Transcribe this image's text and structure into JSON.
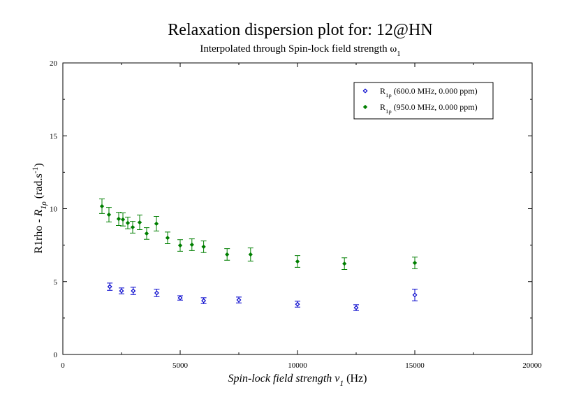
{
  "chart_data": {
    "type": "scatter",
    "title": "Relaxation dispersion plot for: 12@HN",
    "subtitle": [
      {
        "text": "Interpolated through Spin-lock field strength ω"
      },
      {
        "text": "1",
        "sub": true
      }
    ],
    "xlabel": [
      {
        "text": "Spin-lock field strength ν",
        "italic": true
      },
      {
        "text": "1",
        "sub": true,
        "italic": true
      },
      {
        "text": " (Hz)"
      }
    ],
    "ylabel": [
      {
        "text": "R1rho - "
      },
      {
        "text": "R",
        "italic": true
      },
      {
        "text": "1ρ",
        "sub": true,
        "italic": true
      },
      {
        "text": " (rad.s"
      },
      {
        "text": "-1",
        "sup": true
      },
      {
        "text": ")"
      }
    ],
    "xlim": [
      0,
      20000
    ],
    "ylim": [
      0,
      20
    ],
    "xticks": [
      0,
      5000,
      10000,
      15000,
      20000
    ],
    "yticks": [
      0,
      5,
      10,
      15,
      20
    ],
    "xminorticks": [
      2500,
      7500,
      12500,
      17500
    ],
    "yminorticks": [
      2.5,
      7.5,
      12.5,
      17.5
    ],
    "grid": false,
    "legend": "upper-right",
    "series": [
      {
        "name": [
          {
            "text": "R"
          },
          {
            "text": "1ρ",
            "sub": true
          },
          {
            "text": " (600.0 MHz, 0.000 ppm)"
          }
        ],
        "color": "#0000cc",
        "marker": "open-diamond",
        "x": [
          2000,
          2500,
          3000,
          4000,
          5000,
          6000,
          7500,
          10000,
          12500,
          15000
        ],
        "values": [
          4.65,
          4.36,
          4.36,
          4.22,
          3.88,
          3.69,
          3.74,
          3.45,
          3.21,
          4.08
        ],
        "errors": [
          0.25,
          0.2,
          0.25,
          0.25,
          0.15,
          0.2,
          0.2,
          0.2,
          0.2,
          0.4
        ]
      },
      {
        "name": [
          {
            "text": "R"
          },
          {
            "text": "1ρ",
            "sub": true
          },
          {
            "text": " (950.0 MHz, 0.000 ppm)"
          }
        ],
        "color": "#007f00",
        "marker": "diamond",
        "x": [
          1667,
          1964,
          2381,
          2560,
          2768,
          2976,
          3274,
          3571,
          3988,
          4464,
          5000,
          5500,
          6000,
          7000,
          8000,
          10000,
          12000,
          15000
        ],
        "values": [
          10.17,
          9.59,
          9.3,
          9.26,
          9.02,
          8.73,
          9.06,
          8.3,
          8.97,
          8.0,
          7.48,
          7.53,
          7.39,
          6.86,
          6.86,
          6.38,
          6.23,
          6.28
        ],
        "errors": [
          0.5,
          0.5,
          0.45,
          0.45,
          0.4,
          0.4,
          0.5,
          0.4,
          0.5,
          0.4,
          0.4,
          0.4,
          0.4,
          0.4,
          0.45,
          0.4,
          0.4,
          0.4
        ]
      }
    ]
  }
}
